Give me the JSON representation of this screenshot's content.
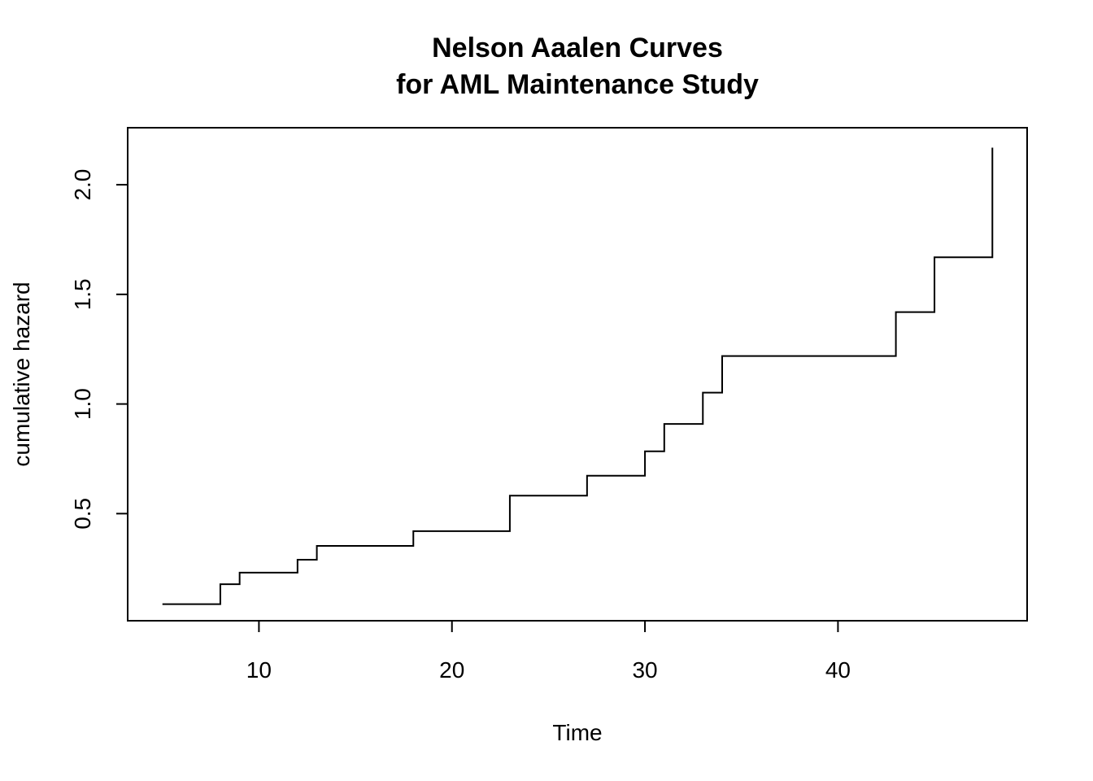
{
  "chart_data": {
    "type": "line",
    "step": true,
    "title_line1": "Nelson Aaalen Curves",
    "title_line2": "for AML Maintenance Study",
    "xlabel": "Time",
    "ylabel": "cumulative hazard",
    "xlim": [
      3.2,
      49.8
    ],
    "ylim": [
      0.0115,
      2.26
    ],
    "x_ticks": [
      10,
      20,
      30,
      40
    ],
    "x_tick_labels": [
      "10",
      "20",
      "30",
      "40"
    ],
    "y_ticks": [
      0.5,
      1.0,
      1.5,
      2.0
    ],
    "y_tick_labels": [
      "0.5",
      "1.0",
      "1.5",
      "2.0"
    ],
    "grid": false,
    "line_color": "#000000",
    "series": [
      {
        "x": [
          5,
          8,
          9,
          12,
          13,
          18,
          23,
          27,
          30,
          31,
          33,
          34,
          43,
          45,
          48
        ],
        "y": [
          0.087,
          0.178,
          0.231,
          0.29,
          0.353,
          0.42,
          0.582,
          0.673,
          0.784,
          0.909,
          1.052,
          1.219,
          1.419,
          1.669,
          2.169
        ]
      }
    ]
  }
}
